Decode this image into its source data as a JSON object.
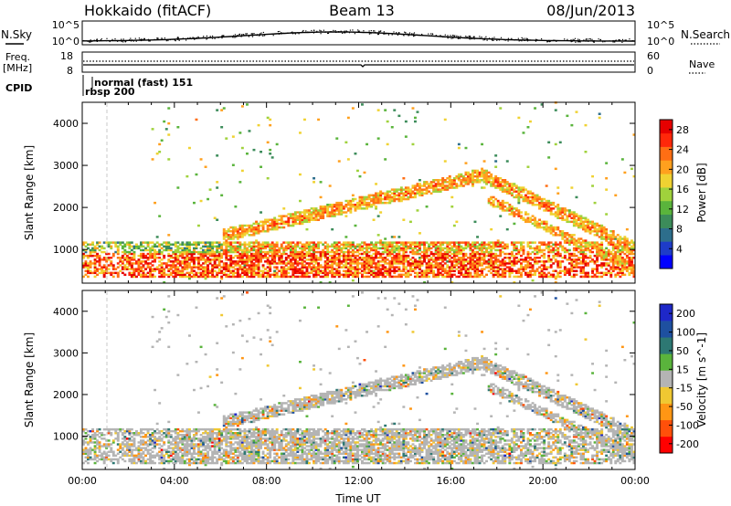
{
  "header": {
    "station": "Hokkaido (fitACF)",
    "beam": "Beam 13",
    "date": "08/Jun/2013"
  },
  "strip": {
    "nsky_label": "N.Sky",
    "nsearch_label": "N.Search",
    "count_ticks": [
      "10^5",
      "10^0"
    ],
    "freq_label": "Freq.",
    "freq_unit": "[MHz]",
    "freq_ticks": [
      "18",
      "8"
    ],
    "nave_label": "Nave",
    "nave_ticks": [
      "60",
      "0"
    ],
    "cpid_label": "CPID",
    "cpid_entries": [
      "normal (fast) 151",
      "rbsp 200"
    ]
  },
  "chart_data": [
    {
      "type": "heatmap",
      "parameter": "power",
      "xlabel": "",
      "ylabel": "Slant Range [km]",
      "x_ticks": [
        "00:00",
        "04:00",
        "08:00",
        "12:00",
        "16:00",
        "20:00",
        "00:00"
      ],
      "y_ticks": [
        1000,
        2000,
        3000,
        4000
      ],
      "xlim_hours": [
        0,
        24
      ],
      "ylim_km": [
        200,
        4500
      ],
      "colorbar": {
        "label": "Power [dB]",
        "ticks": [
          4,
          8,
          12,
          16,
          20,
          24,
          28
        ],
        "range": [
          0,
          30
        ],
        "colors": [
          "#0000ff",
          "#1e3cc8",
          "#2d6e8c",
          "#3c8c5a",
          "#5ab43c",
          "#a0d23c",
          "#f0d232",
          "#ffa01e",
          "#ff6e14",
          "#ff280a",
          "#e60000"
        ]
      },
      "features": [
        {
          "name": "low-range band",
          "t_start": 0,
          "t_end": 24,
          "r_min": 300,
          "r_max": 1150,
          "power": 24
        },
        {
          "name": "rising echo band",
          "t_start": 6,
          "t_end": 17.3,
          "r_start": 1300,
          "r_end": 2750,
          "power": 22
        },
        {
          "name": "descending echo band",
          "t_start": 17.3,
          "t_end": 24,
          "r_start": 2750,
          "r_end": 1000,
          "power": 22
        }
      ]
    },
    {
      "type": "heatmap",
      "parameter": "velocity",
      "xlabel": "Time UT",
      "ylabel": "Slant Range [km]",
      "x_ticks": [
        "00:00",
        "04:00",
        "08:00",
        "12:00",
        "16:00",
        "20:00",
        "00:00"
      ],
      "y_ticks": [
        1000,
        2000,
        3000,
        4000
      ],
      "xlim_hours": [
        0,
        24
      ],
      "ylim_km": [
        200,
        4500
      ],
      "colorbar": {
        "label": "Velocity [m s^-1]",
        "ticks": [
          200,
          100,
          50,
          15,
          -15,
          -50,
          -100,
          -200
        ],
        "colors": [
          "#1e28c8",
          "#1e50a0",
          "#2d7873",
          "#5ab43c",
          "#b4b4b4",
          "#f0c832",
          "#ff9614",
          "#ff500a",
          "#ff0000"
        ]
      },
      "features": [
        {
          "name": "ground scatter (grey)",
          "t_start": 0,
          "t_end": 24,
          "velocity": 0
        },
        {
          "name": "positive velocity patches",
          "velocity": 30
        },
        {
          "name": "negative velocity patches",
          "velocity": -40
        }
      ]
    }
  ]
}
